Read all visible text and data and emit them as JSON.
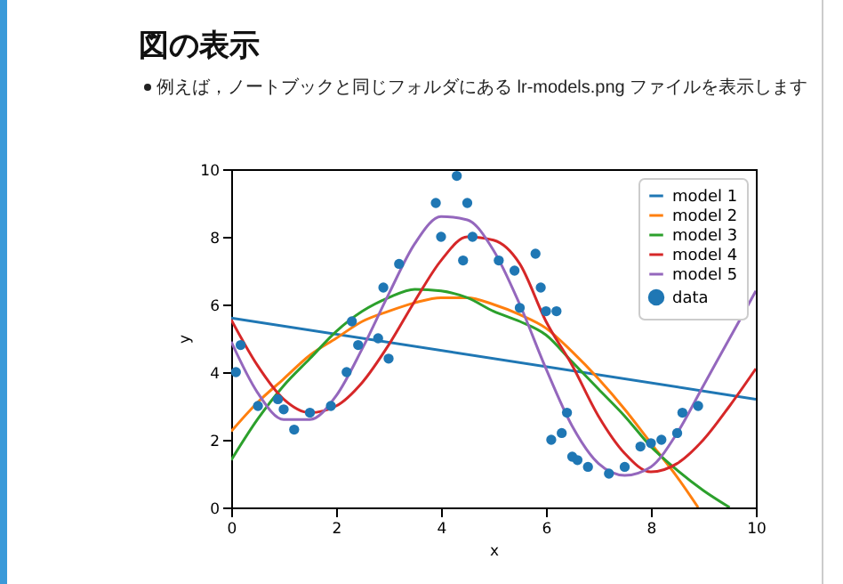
{
  "chart_data": {
    "type": "line",
    "title": "図の表示",
    "subtitle": "例えば，ノートブックと同じフォルダにある lr-models.png ファイルを表示します",
    "xlabel": "x",
    "ylabel": "y",
    "xlim": [
      0,
      10
    ],
    "ylim": [
      0,
      10
    ],
    "xticks": [
      0,
      2,
      4,
      6,
      8,
      10
    ],
    "yticks": [
      0,
      2,
      4,
      6,
      8,
      10
    ],
    "grid": false,
    "legend": "top right",
    "series": [
      {
        "name": "model 1",
        "color": "#1f77b4",
        "x": [
          0,
          10
        ],
        "values": [
          5.6,
          3.2
        ]
      },
      {
        "name": "model 2",
        "color": "#ff7f0e",
        "x": [
          0,
          0.5,
          1,
          1.5,
          2,
          2.5,
          3,
          3.5,
          4,
          4.5,
          5,
          5.5,
          6,
          6.5,
          7,
          7.5,
          8,
          8.5,
          8.9
        ],
        "values": [
          2.25,
          3.1,
          3.8,
          4.5,
          5.0,
          5.5,
          5.8,
          6.05,
          6.2,
          6.2,
          6.0,
          5.7,
          5.3,
          4.6,
          3.8,
          2.9,
          1.9,
          0.9,
          0
        ]
      },
      {
        "name": "model 3",
        "color": "#2ca02c",
        "x": [
          0,
          0.5,
          1,
          1.5,
          2,
          2.5,
          3,
          3.5,
          4,
          4.5,
          5,
          5.5,
          6,
          6.5,
          7,
          7.5,
          8,
          8.5,
          9,
          9.5
        ],
        "values": [
          1.4,
          2.6,
          3.6,
          4.4,
          5.2,
          5.8,
          6.2,
          6.45,
          6.4,
          6.2,
          5.8,
          5.5,
          5.1,
          4.3,
          3.5,
          2.7,
          1.8,
          1.1,
          0.5,
          0
        ]
      },
      {
        "name": "model 4",
        "color": "#d62728",
        "x": [
          0,
          0.5,
          1,
          1.5,
          2,
          2.5,
          3,
          3.5,
          4,
          4.5,
          5,
          5.5,
          6,
          6.5,
          7,
          7.5,
          8,
          8.5,
          9,
          9.5,
          10
        ],
        "values": [
          5.55,
          4.2,
          3.2,
          2.8,
          3.0,
          3.7,
          4.8,
          6.1,
          7.3,
          8.0,
          7.9,
          7.2,
          5.5,
          4.2,
          2.7,
          1.6,
          1.05,
          1.3,
          2.0,
          3.0,
          4.1
        ]
      },
      {
        "name": "model 5",
        "color": "#9467bd",
        "x": [
          0,
          0.5,
          1,
          1.5,
          2,
          2.5,
          3,
          3.5,
          4,
          4.5,
          5,
          5.5,
          6,
          6.5,
          7,
          7.5,
          8,
          8.5,
          9,
          9.5,
          10
        ],
        "values": [
          4.9,
          3.4,
          2.6,
          2.6,
          3.3,
          4.7,
          6.3,
          7.8,
          8.6,
          8.5,
          7.6,
          6.0,
          4.1,
          2.4,
          1.3,
          0.95,
          1.2,
          2.2,
          3.6,
          5.0,
          6.4
        ]
      },
      {
        "name": "data",
        "color": "#1f77b4",
        "type": "scatter",
        "marker": "circle",
        "x": [
          0.09,
          0.18,
          0.51,
          0.89,
          1.0,
          1.2,
          1.5,
          1.9,
          2.2,
          2.3,
          2.42,
          2.8,
          2.9,
          3.0,
          3.2,
          3.9,
          4.0,
          4.3,
          4.42,
          4.5,
          4.6,
          5.1,
          5.4,
          5.5,
          5.8,
          5.9,
          6.0,
          6.1,
          6.2,
          6.3,
          6.4,
          6.5,
          6.6,
          6.8,
          7.2,
          7.5,
          7.8,
          8.0,
          8.2,
          8.5,
          8.6,
          8.9
        ],
        "values": [
          4.0,
          4.8,
          3.0,
          3.2,
          2.9,
          2.3,
          2.8,
          3.0,
          4.0,
          5.5,
          4.8,
          5.0,
          6.5,
          4.4,
          7.2,
          9.0,
          8.0,
          9.8,
          7.3,
          9.0,
          8.0,
          7.3,
          7.0,
          5.9,
          7.5,
          6.5,
          5.8,
          2.0,
          5.8,
          2.2,
          2.8,
          1.5,
          1.4,
          1.2,
          1.0,
          1.2,
          1.8,
          1.9,
          2.0,
          2.2,
          2.8,
          3.0
        ]
      }
    ]
  }
}
